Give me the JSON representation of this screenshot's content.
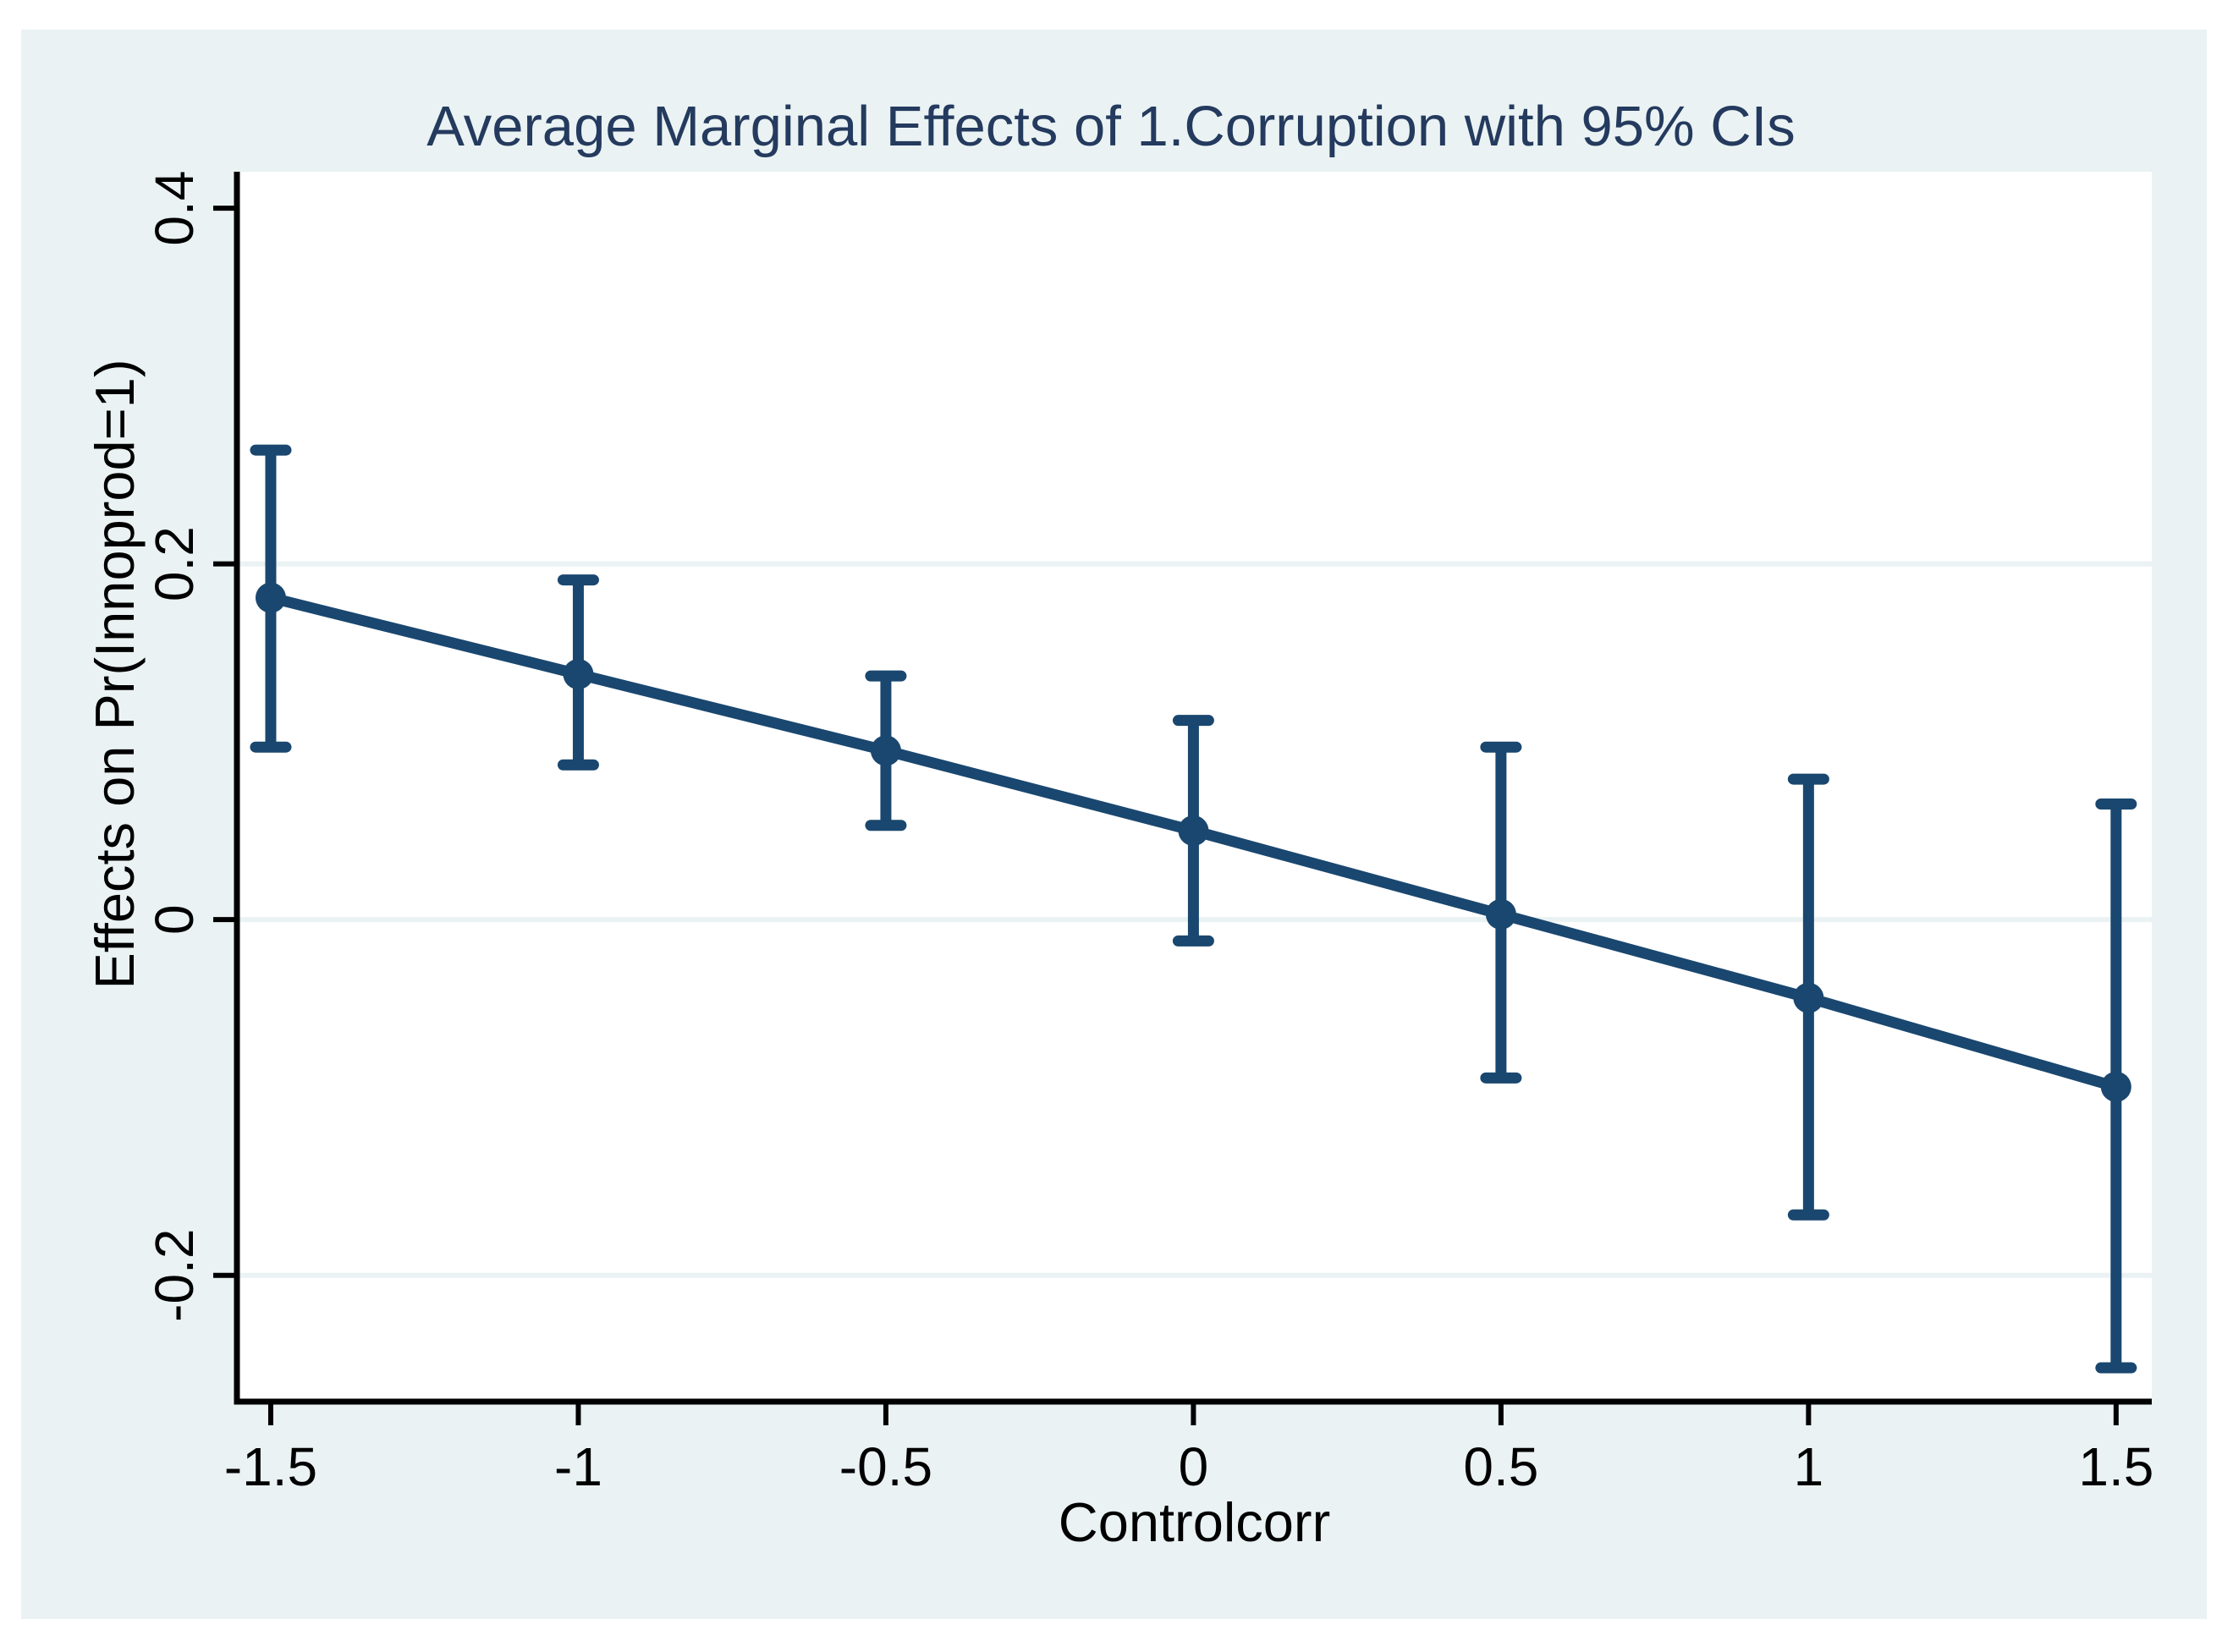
{
  "figure": {
    "page_background": "#ffffff",
    "figure_background": "#eaf2f3",
    "plot_background": "#ffffff",
    "gridline_color": "#eaf2f3",
    "axis_color": "#000000",
    "tick_label_color": "#000000",
    "title_color": "#243a5e",
    "series_color": "#1a476f"
  },
  "chart_data": {
    "type": "line",
    "title": "Average Marginal Effects of 1.Corruption with 95% CIs",
    "xlabel": "Controlcorr",
    "ylabel": "Effects on Pr(Innoprod=1)",
    "x": [
      -1.5,
      -1,
      -0.5,
      0,
      0.5,
      1,
      1.5
    ],
    "series": [
      {
        "name": "average_marginal_effect",
        "values": [
          0.181,
          0.138,
          0.095,
          0.05,
          0.003,
          -0.044,
          -0.094
        ]
      },
      {
        "name": "ci_95_lower",
        "values": [
          0.097,
          0.087,
          0.053,
          -0.012,
          -0.089,
          -0.166,
          -0.252
        ]
      },
      {
        "name": "ci_95_upper",
        "values": [
          0.264,
          0.191,
          0.137,
          0.112,
          0.097,
          0.079,
          0.065
        ]
      }
    ],
    "x_ticks": [
      {
        "label": "-1.5",
        "value": -1.5
      },
      {
        "label": "-1",
        "value": -1
      },
      {
        "label": "-0.5",
        "value": -0.5
      },
      {
        "label": "0",
        "value": 0
      },
      {
        "label": "0.5",
        "value": 0.5
      },
      {
        "label": "1",
        "value": 1
      },
      {
        "label": "1.5",
        "value": 1.5
      }
    ],
    "y_ticks": [
      {
        "label": "0.4",
        "value": 0.4
      },
      {
        "label": "0.2",
        "value": 0.2
      },
      {
        "label": "0",
        "value": 0
      },
      {
        "label": "-0.2",
        "value": -0.2
      }
    ],
    "grid_values": [
      0.2,
      0,
      -0.2
    ],
    "xlim": [
      -1.555,
      1.558
    ],
    "ylim": [
      -0.271,
      0.4205
    ],
    "grid": true,
    "legend_position": "none",
    "marker": "circle"
  }
}
